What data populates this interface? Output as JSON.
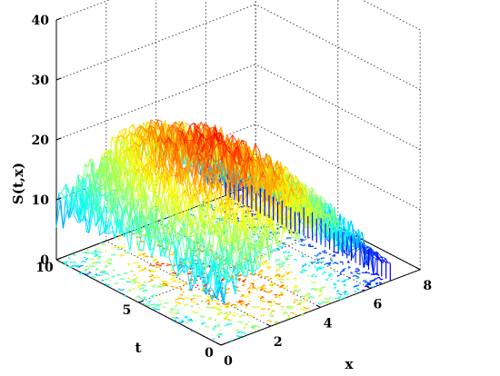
{
  "chart_data": {
    "type": "surface3d",
    "title": "",
    "xlabel": "x",
    "ylabel": "t",
    "zlabel": "S(t,x)",
    "xlim": [
      0,
      8
    ],
    "ylim": [
      0,
      10
    ],
    "zlim": [
      0,
      40
    ],
    "x_ticks": [
      "0",
      "2",
      "4",
      "6",
      "8"
    ],
    "y_ticks": [
      "0",
      "5",
      "10"
    ],
    "z_ticks": [
      "0",
      "10",
      "20",
      "30",
      "40"
    ],
    "grid": true,
    "colormap": "jet",
    "contour_projection": true,
    "surface_profile": {
      "x": [
        0,
        1,
        2,
        3,
        4,
        5,
        6,
        7
      ],
      "mean_z_at_t5": [
        11,
        15,
        19,
        21,
        19,
        14,
        8,
        3
      ]
    }
  }
}
